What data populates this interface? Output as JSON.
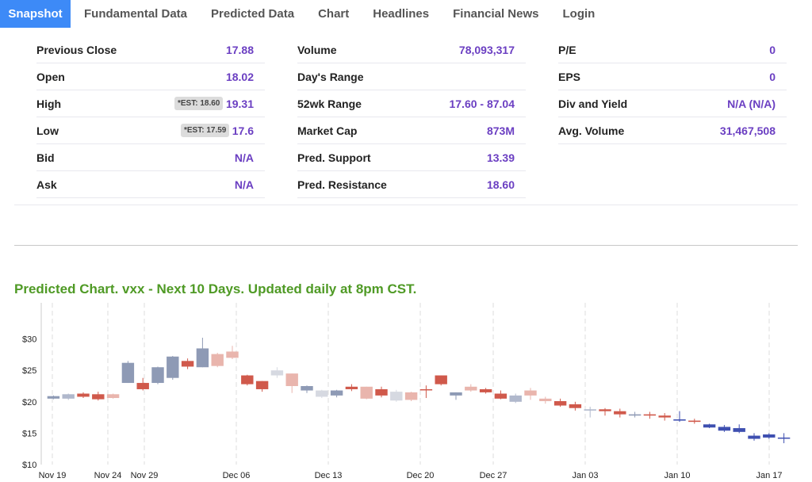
{
  "tabs": [
    {
      "label": "Snapshot",
      "active": true
    },
    {
      "label": "Fundamental Data"
    },
    {
      "label": "Predicted Data"
    },
    {
      "label": "Chart"
    },
    {
      "label": "Headlines"
    },
    {
      "label": "Financial News"
    },
    {
      "label": "Login"
    }
  ],
  "stats": {
    "col1": [
      {
        "label": "Previous Close",
        "value": "17.88"
      },
      {
        "label": "Open",
        "value": "18.02"
      },
      {
        "label": "High",
        "value": "19.31",
        "est": "*EST: 18.60"
      },
      {
        "label": "Low",
        "value": "17.6",
        "est": "*EST: 17.59"
      },
      {
        "label": "Bid",
        "value": "N/A"
      },
      {
        "label": "Ask",
        "value": "N/A"
      }
    ],
    "col2": [
      {
        "label": "Volume",
        "value": "78,093,317"
      },
      {
        "label": "Day's Range",
        "value": ""
      },
      {
        "label": "52wk Range",
        "value": "17.60 - 87.04"
      },
      {
        "label": "Market Cap",
        "value": "873M"
      },
      {
        "label": "Pred. Support",
        "value": "13.39"
      },
      {
        "label": "Pred. Resistance",
        "value": "18.60"
      }
    ],
    "col3": [
      {
        "label": "P/E",
        "value": "0"
      },
      {
        "label": "EPS",
        "value": "0"
      },
      {
        "label": "Div and Yield",
        "value": "N/A (N/A)"
      },
      {
        "label": "Avg. Volume",
        "value": "31,467,508"
      }
    ]
  },
  "chart_title": "Predicted Chart. vxx - Next 10 Days. Updated daily at 8pm CST.",
  "colors": {
    "tab_active": "#3d8af7",
    "value_text": "#6b3fc2",
    "title_green": "#4f9a25"
  },
  "chart_data": {
    "type": "candlestick",
    "ylim": [
      10,
      35
    ],
    "yticks": [
      10,
      15,
      20,
      25,
      30
    ],
    "ytick_labels": [
      "$10",
      "$15",
      "$20",
      "$25",
      "$30"
    ],
    "x_labels": [
      "Nov 19",
      "Nov 24",
      "Nov 29",
      "Dec 06",
      "Dec 13",
      "Dec 20",
      "Dec 27",
      "Jan 03",
      "Jan 10",
      "Jan 17"
    ],
    "candles": [
      {
        "o": 20.5,
        "c": 20.9,
        "h": 21.0,
        "l": 20.4,
        "color": "#8e9ab5"
      },
      {
        "o": 20.5,
        "c": 21.2,
        "h": 21.3,
        "l": 20.3,
        "color": "#b0b8cc"
      },
      {
        "o": 20.8,
        "c": 21.3,
        "h": 21.5,
        "l": 20.6,
        "color": "#d0594b"
      },
      {
        "o": 21.2,
        "c": 20.4,
        "h": 21.6,
        "l": 20.2,
        "color": "#d0594b"
      },
      {
        "o": 20.6,
        "c": 21.2,
        "h": 21.3,
        "l": 20.5,
        "color": "#e9b5ad"
      },
      {
        "o": 23.0,
        "c": 26.2,
        "h": 26.5,
        "l": 23.0,
        "color": "#8e9ab5"
      },
      {
        "o": 22.0,
        "c": 23.0,
        "h": 23.8,
        "l": 21.8,
        "color": "#d0594b"
      },
      {
        "o": 23.0,
        "c": 25.5,
        "h": 25.6,
        "l": 22.8,
        "color": "#8e9ab5"
      },
      {
        "o": 23.8,
        "c": 27.2,
        "h": 27.3,
        "l": 23.5,
        "color": "#8e9ab5"
      },
      {
        "o": 26.5,
        "c": 25.6,
        "h": 26.9,
        "l": 25.2,
        "color": "#d0594b"
      },
      {
        "o": 25.5,
        "c": 28.5,
        "h": 30.2,
        "l": 25.5,
        "color": "#8e9ab5"
      },
      {
        "o": 27.6,
        "c": 25.7,
        "h": 27.8,
        "l": 25.5,
        "color": "#e9b5ad"
      },
      {
        "o": 28.0,
        "c": 27.0,
        "h": 28.9,
        "l": 26.8,
        "color": "#e9b5ad"
      },
      {
        "o": 24.2,
        "c": 22.8,
        "h": 24.3,
        "l": 22.6,
        "color": "#d0594b"
      },
      {
        "o": 23.3,
        "c": 22.0,
        "h": 23.3,
        "l": 21.6,
        "color": "#d0594b"
      },
      {
        "o": 24.2,
        "c": 25.0,
        "h": 25.5,
        "l": 23.8,
        "color": "#d6d9e1"
      },
      {
        "o": 24.5,
        "c": 22.5,
        "h": 24.5,
        "l": 21.4,
        "color": "#e9b5ad"
      },
      {
        "o": 21.8,
        "c": 22.5,
        "h": 22.6,
        "l": 21.4,
        "color": "#8e9ab5"
      },
      {
        "o": 20.8,
        "c": 21.8,
        "h": 21.9,
        "l": 20.6,
        "color": "#d6d9e1"
      },
      {
        "o": 21.0,
        "c": 21.8,
        "h": 21.9,
        "l": 20.7,
        "color": "#8e9ab5"
      },
      {
        "o": 22.4,
        "c": 22.0,
        "h": 22.8,
        "l": 21.7,
        "color": "#d0594b"
      },
      {
        "o": 22.4,
        "c": 20.5,
        "h": 22.4,
        "l": 20.4,
        "color": "#e9b5ad"
      },
      {
        "o": 22.0,
        "c": 21.0,
        "h": 22.4,
        "l": 20.7,
        "color": "#d0594b"
      },
      {
        "o": 20.2,
        "c": 21.6,
        "h": 21.9,
        "l": 20.0,
        "color": "#d6d9e1"
      },
      {
        "o": 21.5,
        "c": 20.3,
        "h": 21.6,
        "l": 20.1,
        "color": "#e9b5ad"
      },
      {
        "o": 22.0,
        "c": 22.0,
        "h": 22.6,
        "l": 20.6,
        "color": "#d0594b"
      },
      {
        "o": 24.2,
        "c": 22.8,
        "h": 24.2,
        "l": 22.6,
        "color": "#d0594b"
      },
      {
        "o": 21.5,
        "c": 21.0,
        "h": 21.5,
        "l": 20.3,
        "color": "#8e9ab5"
      },
      {
        "o": 22.4,
        "c": 21.8,
        "h": 22.8,
        "l": 21.6,
        "color": "#e9b5ad"
      },
      {
        "o": 22.0,
        "c": 21.5,
        "h": 22.2,
        "l": 21.3,
        "color": "#d0594b"
      },
      {
        "o": 21.3,
        "c": 20.5,
        "h": 21.8,
        "l": 20.4,
        "color": "#d0594b"
      },
      {
        "o": 21.0,
        "c": 20.0,
        "h": 21.3,
        "l": 19.8,
        "color": "#b0b8cc"
      },
      {
        "o": 21.8,
        "c": 21.0,
        "h": 22.2,
        "l": 20.3,
        "color": "#e9b5ad"
      },
      {
        "o": 20.5,
        "c": 20.1,
        "h": 20.8,
        "l": 19.7,
        "color": "#e9b5ad"
      },
      {
        "o": 20.1,
        "c": 19.4,
        "h": 20.5,
        "l": 19.2,
        "color": "#d0594b"
      },
      {
        "o": 19.6,
        "c": 19.0,
        "h": 20.0,
        "l": 18.6,
        "color": "#d0594b"
      },
      {
        "o": 18.8,
        "c": 18.6,
        "h": 19.2,
        "l": 17.5,
        "color": "#b0b8cc"
      },
      {
        "o": 18.8,
        "c": 18.5,
        "h": 19.0,
        "l": 17.8,
        "color": "#d0594b"
      },
      {
        "o": 18.5,
        "c": 18.0,
        "h": 18.9,
        "l": 17.5,
        "color": "#d0594b"
      },
      {
        "o": 18.0,
        "c": 17.8,
        "h": 18.4,
        "l": 17.5,
        "color": "#8e9ab5"
      },
      {
        "o": 18.0,
        "c": 17.8,
        "h": 18.4,
        "l": 17.3,
        "color": "#d0594b"
      },
      {
        "o": 17.8,
        "c": 17.5,
        "h": 18.2,
        "l": 17.0,
        "color": "#d0594b"
      },
      {
        "o": 17.2,
        "c": 17.0,
        "h": 18.5,
        "l": 16.8,
        "color": "#3e4fb0"
      },
      {
        "o": 17.0,
        "c": 16.8,
        "h": 17.3,
        "l": 16.5,
        "color": "#d0594b"
      },
      {
        "o": 16.4,
        "c": 15.9,
        "h": 16.5,
        "l": 15.8,
        "color": "#3e4fb0"
      },
      {
        "o": 16.0,
        "c": 15.4,
        "h": 16.3,
        "l": 15.2,
        "color": "#3e4fb0"
      },
      {
        "o": 15.8,
        "c": 15.2,
        "h": 16.4,
        "l": 15.0,
        "color": "#3e4fb0"
      },
      {
        "o": 14.6,
        "c": 14.1,
        "h": 15.0,
        "l": 13.8,
        "color": "#3e4fb0"
      },
      {
        "o": 14.8,
        "c": 14.3,
        "h": 15.0,
        "l": 14.1,
        "color": "#3e4fb0"
      },
      {
        "o": 14.3,
        "c": 14.2,
        "h": 15.0,
        "l": 13.4,
        "color": "#3e4fb0"
      }
    ]
  }
}
